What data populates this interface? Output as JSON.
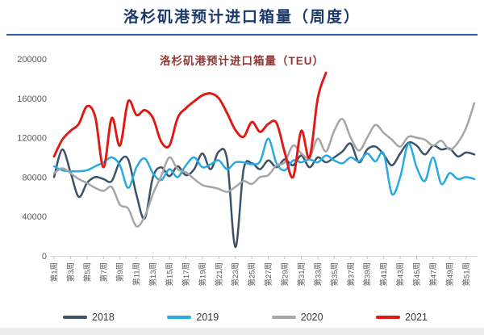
{
  "page": {
    "title": "洛杉矶港预计进口箱量（周度）"
  },
  "chart_data": {
    "type": "line",
    "title": "洛杉矶港预计进口箱量（TEU）",
    "ylabel": "",
    "xlabel": "",
    "ylim": [
      0,
      200000
    ],
    "y_ticks": [
      0,
      40000,
      80000,
      120000,
      160000,
      200000
    ],
    "grid": false,
    "legend_position": "bottom",
    "weeks": 52,
    "x_tick_labels": [
      "第1周",
      "第3周",
      "第5周",
      "第7周",
      "第9周",
      "第11周",
      "第13周",
      "第15周",
      "第17周",
      "第19周",
      "第21周",
      "第23周",
      "第25周",
      "第27周",
      "第29周",
      "第31周",
      "第33周",
      "第35周",
      "第37周",
      "第39周",
      "第41周",
      "第43周",
      "第45周",
      "第47周",
      "第49周",
      "第51周"
    ],
    "series": [
      {
        "name": "2018",
        "color": "#3C5269",
        "values": [
          80000,
          108000,
          85000,
          60000,
          74000,
          80000,
          78000,
          76000,
          96000,
          98000,
          62000,
          38000,
          80000,
          90000,
          81000,
          91000,
          82000,
          88000,
          104000,
          88000,
          106000,
          98000,
          9000,
          88000,
          94000,
          88000,
          97000,
          90000,
          98000,
          92000,
          102000,
          90000,
          100000,
          95000,
          100000,
          106000,
          114000,
          95000,
          108000,
          111000,
          103000,
          92000,
          104000,
          115000,
          112000,
          103000,
          112000,
          108000,
          109000,
          101000,
          105000,
          103000
        ]
      },
      {
        "name": "2019",
        "color": "#29A9E1",
        "values": [
          91000,
          87000,
          86000,
          86000,
          87000,
          91000,
          95000,
          100000,
          92000,
          69000,
          90000,
          99000,
          84000,
          77000,
          88000,
          80000,
          92000,
          100000,
          90000,
          93000,
          97000,
          88000,
          95000,
          95000,
          93000,
          96000,
          119000,
          94000,
          87000,
          97000,
          95000,
          98000,
          95000,
          102000,
          97000,
          94000,
          100000,
          96000,
          104000,
          96000,
          104000,
          63000,
          80000,
          114000,
          90000,
          76000,
          100000,
          73000,
          84000,
          78000,
          80000,
          78000
        ]
      },
      {
        "name": "2020",
        "color": "#A6A6A6",
        "values": [
          84000,
          89000,
          84000,
          78000,
          74000,
          69000,
          66000,
          70000,
          52000,
          48000,
          30000,
          40000,
          63000,
          81000,
          100000,
          88000,
          85000,
          78000,
          72000,
          70000,
          68000,
          65000,
          70000,
          76000,
          73000,
          80000,
          82000,
          92000,
          95000,
          112000,
          104000,
          100000,
          119000,
          106000,
          127000,
          139000,
          120000,
          107000,
          120000,
          133000,
          125000,
          118000,
          111000,
          121000,
          120000,
          118000,
          112000,
          117000,
          108000,
          115000,
          130000,
          155000
        ]
      },
      {
        "name": "2021",
        "color": "#E01914",
        "values": [
          101000,
          118000,
          127000,
          134000,
          152000,
          141000,
          90000,
          140000,
          112000,
          157000,
          143000,
          148000,
          140000,
          116000,
          112000,
          140000,
          150000,
          157000,
          163000,
          165000,
          160000,
          145000,
          128000,
          121000,
          136000,
          126000,
          134000,
          135000,
          105000,
          80000,
          127000,
          100000,
          160000,
          186000,
          null,
          null,
          null,
          null,
          null,
          null,
          null,
          null,
          null,
          null,
          null,
          null,
          null,
          null,
          null,
          null,
          null,
          null
        ]
      }
    ],
    "colors": {
      "page_title": "#1c3a6b",
      "title_rule": "#2b5cad",
      "chart_title": "#943634",
      "axis_labels": "#595959",
      "axis_line": "#d6d6d6"
    }
  }
}
